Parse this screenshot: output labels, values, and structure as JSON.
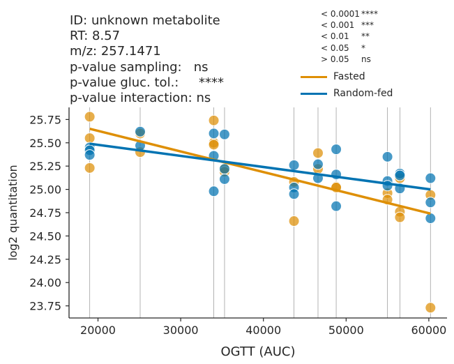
{
  "title": {
    "id_line": "ID: unknown metabolite",
    "rt_line": "RT: 8.57",
    "mz_line": "m/z: 257.1471",
    "pval_sampling": "p-value sampling:   ns",
    "pval_gluc": "p-value gluc. tol.:     ****",
    "pval_interaction": "p-value interaction: ns"
  },
  "significance_legend": [
    {
      "threshold": "< 0.0001",
      "symbol": "****"
    },
    {
      "threshold": "< 0.001",
      "symbol": "***"
    },
    {
      "threshold": "< 0.01",
      "symbol": "**"
    },
    {
      "threshold": "< 0.05",
      "symbol": "*"
    },
    {
      "threshold": "> 0.05",
      "symbol": "ns"
    }
  ],
  "colors": {
    "fasted": "#de8f05",
    "random_fed": "#0173b2",
    "vline": "#a0a0a0",
    "axis": "#262626"
  },
  "chart_data": {
    "type": "scatter",
    "xlabel": "OGTT (AUC)",
    "ylabel": "log2 quantitation",
    "xlim": [
      16500,
      62200
    ],
    "ylim": [
      23.62,
      25.88
    ],
    "xticks": [
      20000,
      30000,
      40000,
      50000,
      60000
    ],
    "yticks": [
      23.75,
      24.0,
      24.25,
      24.5,
      24.75,
      25.0,
      25.25,
      25.5,
      25.75
    ],
    "vlines": [
      19000,
      25100,
      34000,
      35300,
      43700,
      46600,
      48800,
      55000,
      56500,
      60200
    ],
    "series": [
      {
        "name": "Fasted",
        "color_key": "fasted",
        "points": [
          [
            19000,
            25.78
          ],
          [
            19000,
            25.55
          ],
          [
            19000,
            25.23
          ],
          [
            25100,
            25.6
          ],
          [
            25100,
            25.4
          ],
          [
            34000,
            25.74
          ],
          [
            34000,
            25.5
          ],
          [
            34000,
            25.48
          ],
          [
            35300,
            25.22
          ],
          [
            35300,
            25.19
          ],
          [
            43700,
            25.08
          ],
          [
            43700,
            24.66
          ],
          [
            46600,
            25.39
          ],
          [
            46600,
            25.22
          ],
          [
            48800,
            25.03
          ],
          [
            48800,
            25.02
          ],
          [
            55000,
            24.96
          ],
          [
            55000,
            24.89
          ],
          [
            56500,
            25.12
          ],
          [
            56500,
            24.76
          ],
          [
            56500,
            24.7
          ],
          [
            60200,
            24.94
          ],
          [
            60200,
            23.73
          ]
        ],
        "fit": {
          "x": [
            19000,
            60200
          ],
          "y": [
            25.65,
            24.74
          ]
        }
      },
      {
        "name": "Random-fed",
        "color_key": "random_fed",
        "points": [
          [
            19000,
            25.45
          ],
          [
            19000,
            25.42
          ],
          [
            19000,
            25.37
          ],
          [
            25100,
            25.62
          ],
          [
            25100,
            25.47
          ],
          [
            34000,
            25.6
          ],
          [
            34000,
            25.36
          ],
          [
            34000,
            24.98
          ],
          [
            35300,
            25.59
          ],
          [
            35300,
            25.22
          ],
          [
            35300,
            25.11
          ],
          [
            43700,
            25.26
          ],
          [
            43700,
            25.02
          ],
          [
            43700,
            24.95
          ],
          [
            46600,
            25.27
          ],
          [
            46600,
            25.12
          ],
          [
            48800,
            25.43
          ],
          [
            48800,
            25.16
          ],
          [
            48800,
            24.82
          ],
          [
            55000,
            25.35
          ],
          [
            55000,
            25.09
          ],
          [
            55000,
            25.04
          ],
          [
            56500,
            25.17
          ],
          [
            56500,
            25.15
          ],
          [
            56500,
            25.01
          ],
          [
            60200,
            25.12
          ],
          [
            60200,
            24.86
          ],
          [
            60200,
            24.69
          ]
        ],
        "fit": {
          "x": [
            19000,
            60200
          ],
          "y": [
            25.49,
            25.0
          ]
        }
      }
    ],
    "legend": [
      "Fasted",
      "Random-fed"
    ]
  }
}
